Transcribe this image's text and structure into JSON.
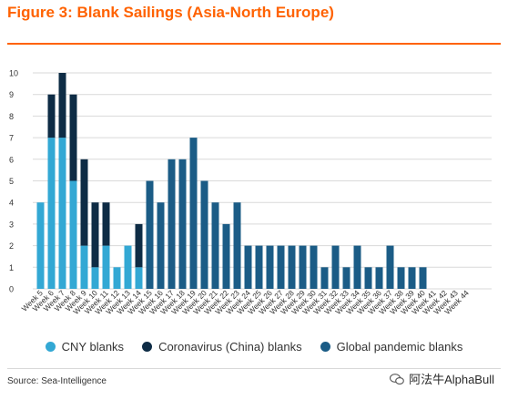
{
  "title": "Figure 3: Blank Sailings (Asia-North Europe)",
  "source": "Source: Sea-Intelligence",
  "watermark": "阿法牛AlphaBull",
  "colors": {
    "title": "#ff6200",
    "cny": "#33a8d4",
    "coronavirus": "#0e2c45",
    "pandemic": "#1b5c86",
    "grid": "#d9d9d9"
  },
  "chart_data": {
    "type": "bar",
    "stacked": true,
    "title": "Figure 3: Blank Sailings (Asia-North Europe)",
    "xlabel": "",
    "ylabel": "",
    "ylim": [
      0,
      10
    ],
    "yticks": [
      0,
      1,
      2,
      3,
      4,
      5,
      6,
      7,
      8,
      9,
      10
    ],
    "grid": true,
    "legend_position": "bottom",
    "categories": [
      "Week 5",
      "Week 6",
      "Week 7",
      "Week 8",
      "Week 9",
      "Week 10",
      "Week 11",
      "Week 12",
      "Week 13",
      "Week 14",
      "Week 15",
      "Week 16",
      "Week 17",
      "Week 18",
      "Week 19",
      "Week 20",
      "Week 21",
      "Week 22",
      "Week 23",
      "Week 24",
      "Week 25",
      "Week 26",
      "Week 27",
      "Week 28",
      "Week 29",
      "Week 30",
      "Week 31",
      "Week 32",
      "Week 33",
      "Week 34",
      "Week 35",
      "Week 36",
      "Week 37",
      "Week 38",
      "Week 39",
      "Week 40",
      "Week 41",
      "Week 42",
      "Week 43",
      "Week 44"
    ],
    "series": [
      {
        "name": "CNY blanks",
        "color": "#33a8d4",
        "values": [
          4,
          7,
          7,
          5,
          2,
          1,
          2,
          1,
          2,
          1,
          0,
          0,
          0,
          0,
          0,
          0,
          0,
          0,
          0,
          0,
          0,
          0,
          0,
          0,
          0,
          0,
          0,
          0,
          0,
          0,
          0,
          0,
          0,
          0,
          0,
          0,
          0,
          0,
          0,
          0
        ]
      },
      {
        "name": "Coronavirus (China) blanks",
        "color": "#0e2c45",
        "values": [
          0,
          2,
          3,
          4,
          4,
          3,
          2,
          0,
          0,
          2,
          0,
          0,
          0,
          0,
          0,
          0,
          0,
          0,
          0,
          0,
          0,
          0,
          0,
          0,
          0,
          0,
          0,
          0,
          0,
          0,
          0,
          0,
          0,
          0,
          0,
          0,
          0,
          0,
          0,
          0
        ]
      },
      {
        "name": "Global pandemic blanks",
        "color": "#1b5c86",
        "values": [
          0,
          0,
          0,
          0,
          0,
          0,
          0,
          0,
          0,
          0,
          5,
          4,
          6,
          6,
          7,
          5,
          4,
          3,
          4,
          2,
          2,
          2,
          2,
          2,
          2,
          2,
          1,
          2,
          1,
          2,
          1,
          1,
          2,
          1,
          1,
          1,
          0,
          0,
          0,
          0
        ]
      }
    ]
  }
}
